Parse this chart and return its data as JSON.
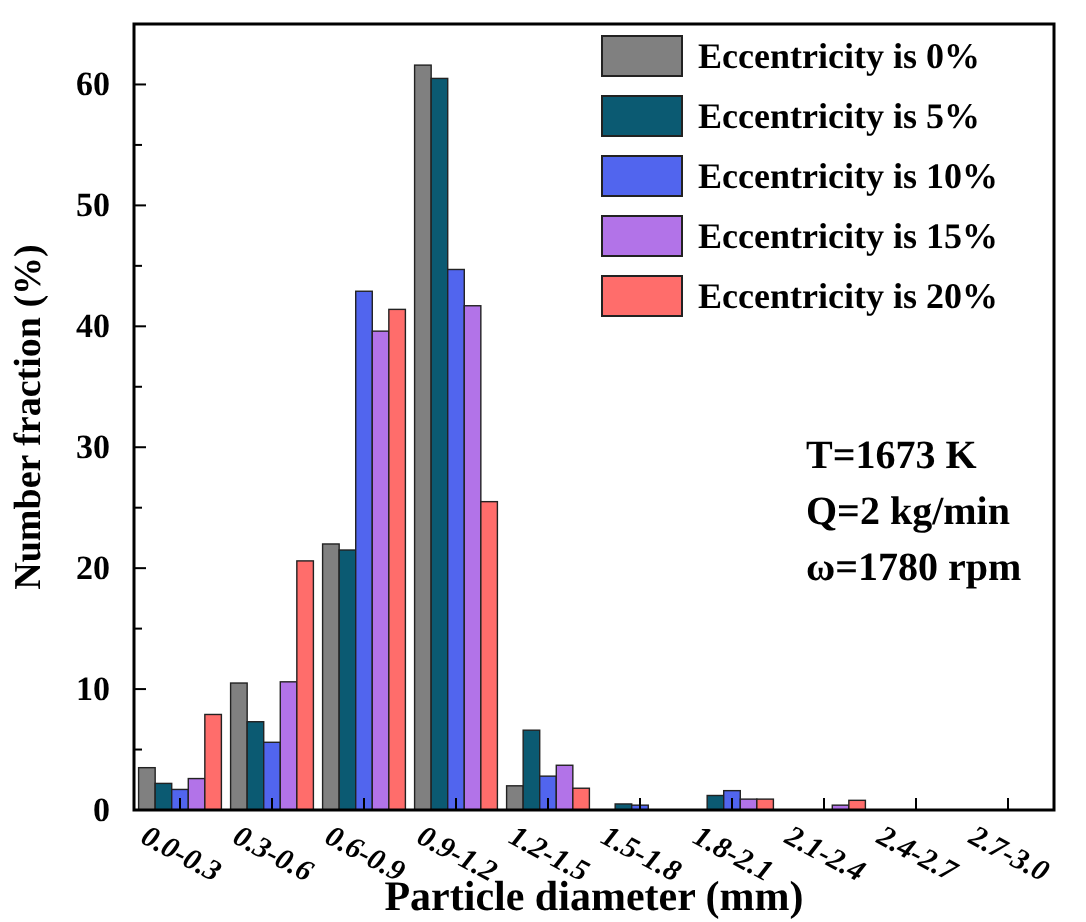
{
  "chart_data": {
    "type": "bar",
    "xlabel": "Particle diameter (mm)",
    "ylabel": "Number fraction (%)",
    "categories": [
      "0.0-0.3",
      "0.3-0.6",
      "0.6-0.9",
      "0.9-1.2",
      "1.2-1.5",
      "1.5-1.8",
      "1.8-2.1",
      "2.1-2.4",
      "2.4-2.7",
      "2.7-3.0"
    ],
    "series": [
      {
        "name": "Eccentricity is 0%",
        "color": "#808080",
        "values": [
          3.5,
          10.5,
          22.0,
          61.6,
          2.0,
          0,
          0,
          0,
          0,
          0
        ]
      },
      {
        "name": "Eccentricity is 5%",
        "color": "#0b5a72",
        "values": [
          2.2,
          7.3,
          21.5,
          60.5,
          6.6,
          0.5,
          1.2,
          0,
          0,
          0
        ]
      },
      {
        "name": "Eccentricity is 10%",
        "color": "#5165ee",
        "values": [
          1.7,
          5.6,
          42.9,
          44.7,
          2.8,
          0.4,
          1.6,
          0,
          0,
          0
        ]
      },
      {
        "name": "Eccentricity is 15%",
        "color": "#b273e8",
        "values": [
          2.6,
          10.6,
          39.6,
          41.7,
          3.7,
          0,
          0.9,
          0.4,
          0,
          0
        ]
      },
      {
        "name": "Eccentricity is 20%",
        "color": "#ff6d6b",
        "values": [
          7.9,
          20.6,
          41.4,
          25.5,
          1.8,
          0,
          0.9,
          0.8,
          0,
          0
        ]
      }
    ],
    "ylim": [
      0,
      65
    ],
    "yticks": [
      0,
      10,
      20,
      30,
      40,
      50,
      60
    ],
    "grid": false,
    "legend": "top right",
    "annotations": [
      "T=1673 K",
      "Q=2 kg/min",
      "ω=1780 rpm"
    ]
  }
}
